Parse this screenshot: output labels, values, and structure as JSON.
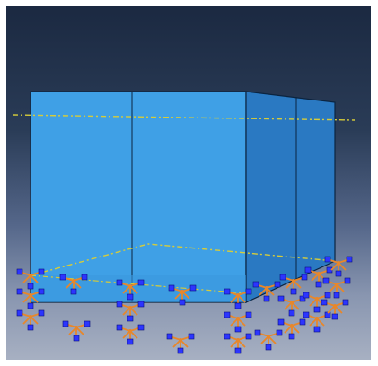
{
  "viewport": {
    "label": "",
    "background_top": "#1b2941",
    "background_bottom": "#a7b0c2"
  },
  "model": {
    "part_color_front": "#3fa0e6",
    "part_color_side": "#2a79c2",
    "edge_color": "#0b2440",
    "datum_line_color": "#d6cc3a",
    "bc_glyph_colors": {
      "triad": "#e8872a",
      "node_marker": "#2c35ff"
    },
    "icons": [
      "encastre-bc-icon"
    ]
  }
}
